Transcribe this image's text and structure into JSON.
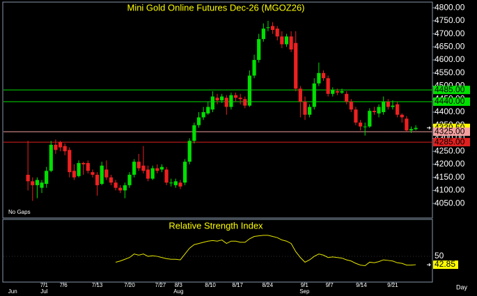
{
  "chart_data": [
    {
      "type": "candlestick",
      "title": "Mini Gold Online Futures Dec-26 (MGOZ26)",
      "note": "No Gaps",
      "x_axis_label": "Day",
      "xlim": [
        -5.3,
        87.6
      ],
      "xticks": [
        {
          "value": 3.5,
          "label": "7/1"
        },
        {
          "value": 7.7,
          "label": "7/6"
        },
        {
          "value": 15,
          "label": "7/13"
        },
        {
          "value": 22,
          "label": "7/20"
        },
        {
          "value": 28.7,
          "label": "7/27"
        },
        {
          "value": 32.6,
          "label": "8/3"
        },
        {
          "value": 39.5,
          "label": "8/10"
        },
        {
          "value": 45.4,
          "label": "8/17"
        },
        {
          "value": 51.9,
          "label": "8/24"
        },
        {
          "value": 59.9,
          "label": "9/1"
        },
        {
          "value": 65.3,
          "label": "9/7"
        },
        {
          "value": 72.2,
          "label": "9/14"
        },
        {
          "value": 79,
          "label": "9/21"
        }
      ],
      "month_ticks": [
        {
          "value": -3.3,
          "label": "Jun"
        },
        {
          "value": 3.5,
          "label": "Jul"
        },
        {
          "value": 32.6,
          "label": "Aug"
        },
        {
          "value": 59.9,
          "label": "Sep"
        }
      ],
      "ylim": [
        3997,
        4819
      ],
      "yticks": [
        {
          "value": 4050,
          "label": "4050.00"
        },
        {
          "value": 4100,
          "label": "4100.00"
        },
        {
          "value": 4150,
          "label": "4150.00"
        },
        {
          "value": 4200,
          "label": "4200.00"
        },
        {
          "value": 4250,
          "label": "4250.00"
        },
        {
          "value": 4300,
          "label": "4300.00"
        },
        {
          "value": 4350,
          "label": "4350.00"
        },
        {
          "value": 4400,
          "label": "4400.00"
        },
        {
          "value": 4450,
          "label": "4450.00"
        },
        {
          "value": 4500,
          "label": "4500.00"
        },
        {
          "value": 4550,
          "label": "4550.00"
        },
        {
          "value": 4600,
          "label": "4600.00"
        },
        {
          "value": 4650,
          "label": "4650.00"
        },
        {
          "value": 4700,
          "label": "4700.00"
        },
        {
          "value": 4750,
          "label": "4750.00"
        },
        {
          "value": 4800,
          "label": "4800.00"
        }
      ],
      "levels": [
        {
          "value": 4485,
          "label": "4485.00",
          "color": "#00e000",
          "line": true
        },
        {
          "value": 4440,
          "label": "4440.00",
          "color": "#00e000",
          "line": true
        },
        {
          "value": 4339.5,
          "label": "4339.50",
          "color": "#ffff00",
          "line": false
        },
        {
          "value": 4325,
          "label": "4325.00",
          "color": "#f4a0a0",
          "line": true
        },
        {
          "value": 4285,
          "label": "4285.00",
          "color": "#e02020",
          "line": true
        }
      ],
      "up_color": "#00e000",
      "down_color": "#ee2020",
      "open": [
        4160,
        4135,
        4120,
        4110,
        4125,
        4175,
        4275,
        4285,
        4270,
        4255,
        4175,
        4155,
        4205,
        4205,
        4170,
        4160,
        4125,
        4180,
        4150,
        4130,
        4110,
        4100,
        4120,
        4160,
        4210,
        4195,
        4180,
        4145,
        4185,
        4180,
        4180,
        4130,
        4120,
        4130,
        4130,
        4210,
        4290,
        4350,
        4380,
        4395,
        4410,
        4455,
        4445,
        4455,
        4420,
        4465,
        4455,
        4450,
        4425,
        4540,
        4600,
        4680,
        4725,
        4730,
        4720,
        4690,
        4660,
        4690,
        4665,
        4490,
        4440,
        4390,
        4420,
        4510,
        4550,
        4530,
        4470,
        4480,
        4475,
        4470,
        4440,
        4410,
        4360,
        4345,
        4345,
        4405,
        4395,
        4400,
        4440,
        4420,
        4430,
        4390,
        4375,
        4330,
        4335
      ],
      "high": [
        4290,
        4150,
        4150,
        4140,
        4190,
        4290,
        4295,
        4290,
        4280,
        4265,
        4200,
        4215,
        4210,
        4215,
        4180,
        4170,
        4210,
        4215,
        4160,
        4140,
        4120,
        4130,
        4170,
        4220,
        4240,
        4270,
        4195,
        4195,
        4200,
        4200,
        4190,
        4145,
        4145,
        4140,
        4220,
        4300,
        4360,
        4400,
        4420,
        4440,
        4480,
        4470,
        4470,
        4465,
        4475,
        4475,
        4470,
        4460,
        4560,
        4620,
        4700,
        4740,
        4750,
        4745,
        4730,
        4710,
        4700,
        4710,
        4710,
        4500,
        4460,
        4430,
        4530,
        4590,
        4560,
        4540,
        4495,
        4490,
        4490,
        4480,
        4450,
        4420,
        4370,
        4360,
        4415,
        4420,
        4430,
        4460,
        4450,
        4445,
        4440,
        4395,
        4385,
        4345,
        4350
      ],
      "low": [
        4100,
        4060,
        4070,
        4090,
        4110,
        4170,
        4240,
        4250,
        4235,
        4150,
        4140,
        4150,
        4160,
        4165,
        4150,
        4080,
        4120,
        4140,
        4120,
        4100,
        4090,
        4070,
        4110,
        4150,
        4175,
        4165,
        4135,
        4140,
        4165,
        4170,
        4120,
        4115,
        4110,
        4105,
        4120,
        4200,
        4280,
        4340,
        4370,
        4390,
        4400,
        4430,
        4435,
        4390,
        4410,
        4440,
        4430,
        4415,
        4420,
        4530,
        4590,
        4670,
        4710,
        4700,
        4675,
        4645,
        4650,
        4630,
        4480,
        4380,
        4370,
        4380,
        4410,
        4500,
        4520,
        4460,
        4460,
        4465,
        4470,
        4430,
        4400,
        4350,
        4330,
        4310,
        4340,
        4390,
        4380,
        4390,
        4410,
        4410,
        4380,
        4360,
        4325,
        4320,
        4330
      ],
      "close": [
        4135,
        4120,
        4140,
        4130,
        4175,
        4275,
        4255,
        4265,
        4250,
        4170,
        4150,
        4205,
        4200,
        4175,
        4160,
        4120,
        4195,
        4150,
        4130,
        4110,
        4100,
        4120,
        4160,
        4210,
        4185,
        4175,
        4145,
        4185,
        4175,
        4190,
        4130,
        4130,
        4135,
        4115,
        4210,
        4290,
        4350,
        4380,
        4400,
        4420,
        4460,
        4445,
        4460,
        4420,
        4465,
        4455,
        4450,
        4425,
        4540,
        4600,
        4680,
        4720,
        4725,
        4715,
        4690,
        4660,
        4690,
        4640,
        4490,
        4440,
        4390,
        4420,
        4510,
        4550,
        4530,
        4470,
        4485,
        4475,
        4480,
        4440,
        4410,
        4360,
        4345,
        4345,
        4405,
        4400,
        4420,
        4440,
        4420,
        4425,
        4390,
        4380,
        4330,
        4335,
        4339.5
      ]
    },
    {
      "type": "line",
      "title": "Relative Strength Index",
      "color": "#e8e800",
      "ylim": [
        28,
        81
      ],
      "yticks": [
        50
      ],
      "values": [
        null,
        null,
        null,
        null,
        null,
        null,
        null,
        null,
        null,
        null,
        null,
        null,
        null,
        null,
        null,
        null,
        null,
        null,
        null,
        45,
        46,
        47.5,
        49,
        52,
        51,
        52,
        50,
        50.5,
        50,
        49,
        48,
        47.5,
        47.5,
        47,
        52,
        57,
        60,
        61,
        62,
        63,
        63.5,
        63,
        64,
        61,
        63,
        63,
        62,
        62,
        65,
        67,
        67.5,
        68,
        68,
        67,
        66,
        64,
        63,
        61,
        54,
        49,
        45,
        47,
        50,
        52,
        51,
        49,
        49.5,
        49,
        48.5,
        47,
        46,
        44,
        42.5,
        42,
        45,
        44.5,
        45.5,
        47,
        46.5,
        46,
        44.5,
        44,
        42.5,
        42.5,
        42.85
      ]
    }
  ]
}
